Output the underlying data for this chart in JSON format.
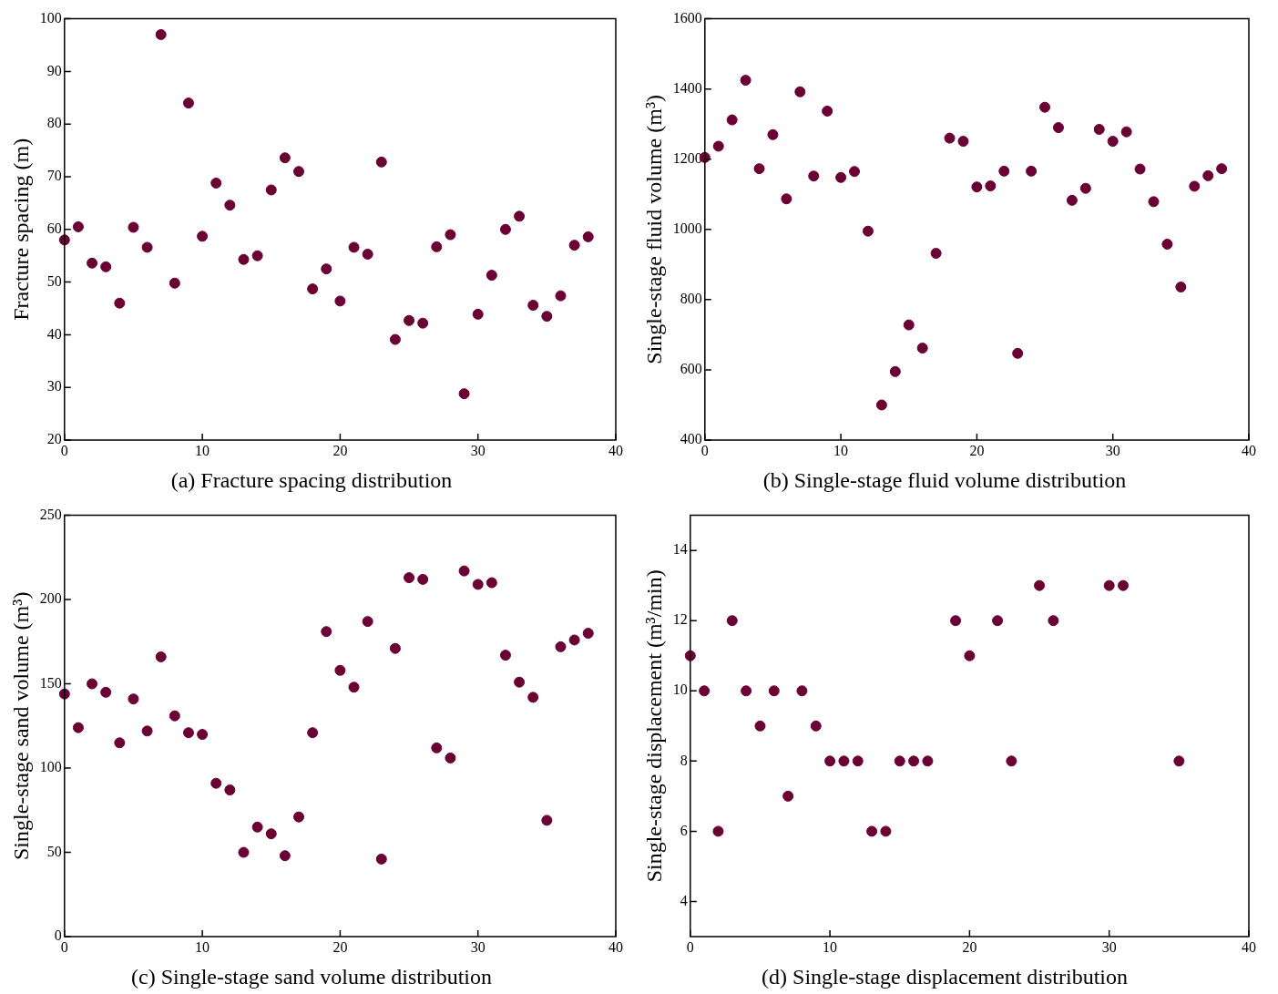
{
  "chart_data": [
    {
      "type": "scatter",
      "title": "(a) Fracture spacing distribution",
      "ylabel": "Fracture spacing (m)",
      "color": "#6b0035",
      "marker": "circle",
      "xlim": [
        0,
        40
      ],
      "xticks": [
        0,
        10,
        20,
        30,
        40
      ],
      "ylim": [
        20,
        100
      ],
      "yticks": [
        20,
        30,
        40,
        50,
        60,
        70,
        80,
        90,
        100
      ],
      "x": [
        0,
        1,
        2,
        3,
        4,
        5,
        6,
        7,
        8,
        9,
        10,
        11,
        12,
        13,
        14,
        15,
        16,
        17,
        18,
        19,
        20,
        21,
        22,
        23,
        24,
        25,
        26,
        27,
        28,
        29,
        30,
        31,
        32,
        33,
        34,
        35,
        36,
        37,
        38
      ],
      "values": [
        58,
        60.5,
        53.6,
        52.9,
        46,
        60.4,
        56.6,
        97,
        49.8,
        84,
        58.7,
        68.8,
        64.6,
        54.3,
        55,
        67.5,
        73.6,
        71,
        48.7,
        52.5,
        46.4,
        56.6,
        55.3,
        72.8,
        39.1,
        42.7,
        42.2,
        56.7,
        59,
        28.8,
        43.9,
        51.3,
        60,
        62.5,
        45.6,
        43.5,
        47.4,
        57,
        58.6
      ]
    },
    {
      "type": "scatter",
      "title": "(b) Single-stage fluid volume distribution",
      "ylabel": "Single-stage fluid volume (m³)",
      "color": "#6b0035",
      "marker": "circle",
      "xlim": [
        0,
        40
      ],
      "xticks": [
        0,
        10,
        20,
        30,
        40
      ],
      "ylim": [
        400,
        1600
      ],
      "yticks": [
        400,
        600,
        800,
        1000,
        1200,
        1400,
        1600
      ],
      "x": [
        0,
        1,
        2,
        3,
        4,
        5,
        6,
        7,
        8,
        9,
        10,
        11,
        12,
        13,
        14,
        15,
        16,
        17,
        18,
        19,
        20,
        21,
        22,
        23,
        24,
        25,
        26,
        27,
        28,
        29,
        30,
        31,
        32,
        33,
        34,
        35,
        36,
        37,
        38
      ],
      "values": [
        1205,
        1237,
        1312,
        1425,
        1173,
        1270,
        1087,
        1392,
        1152,
        1337,
        1148,
        1165,
        995,
        500,
        595,
        728,
        662,
        932,
        1260,
        1251,
        1121,
        1124,
        1166,
        647,
        1166,
        1348,
        1290,
        1083,
        1117,
        1285,
        1251,
        1278,
        1172,
        1079,
        958,
        836,
        1123,
        1153,
        1173
      ]
    },
    {
      "type": "scatter",
      "title": "(c) Single-stage sand volume distribution",
      "ylabel": "Single-stage sand volume (m³)",
      "color": "#6b0035",
      "marker": "circle",
      "xlim": [
        0,
        40
      ],
      "xticks": [
        0,
        10,
        20,
        30,
        40
      ],
      "ylim": [
        0,
        250
      ],
      "yticks": [
        0,
        50,
        100,
        150,
        200,
        250
      ],
      "x": [
        0,
        1,
        2,
        3,
        4,
        5,
        6,
        7,
        8,
        9,
        10,
        11,
        12,
        13,
        14,
        15,
        16,
        17,
        18,
        19,
        20,
        21,
        22,
        23,
        24,
        25,
        26,
        27,
        28,
        29,
        30,
        31,
        32,
        33,
        34,
        35,
        36,
        37,
        38
      ],
      "values": [
        144,
        124,
        150,
        145,
        115,
        141,
        122,
        166,
        131,
        121,
        120,
        91,
        87,
        50,
        65,
        61,
        48,
        71,
        121,
        181,
        158,
        148,
        187,
        46,
        171,
        213,
        212,
        112,
        106,
        217,
        209,
        210,
        167,
        151,
        142,
        69,
        172,
        176,
        180
      ]
    },
    {
      "type": "scatter",
      "title": "(d) Single-stage displacement distribution",
      "ylabel": "Single-stage displacement (m³/min)",
      "color": "#6b0035",
      "marker": "circle",
      "xlim": [
        0,
        40
      ],
      "xticks": [
        0,
        10,
        20,
        30,
        40
      ],
      "ylim": [
        3,
        15
      ],
      "yticks": [
        4,
        6,
        8,
        10,
        12,
        14
      ],
      "x": [
        0,
        1,
        2,
        3,
        4,
        5,
        6,
        7,
        8,
        9,
        10,
        11,
        12,
        13,
        14,
        15,
        16,
        17,
        19,
        20,
        22,
        23,
        25,
        26,
        30,
        31,
        35
      ],
      "values": [
        11,
        10,
        6,
        12,
        10,
        9,
        10,
        7,
        10,
        9,
        8,
        8,
        8,
        6,
        6,
        8,
        8,
        8,
        12,
        11,
        12,
        8,
        13,
        12,
        13,
        13,
        8
      ]
    }
  ]
}
